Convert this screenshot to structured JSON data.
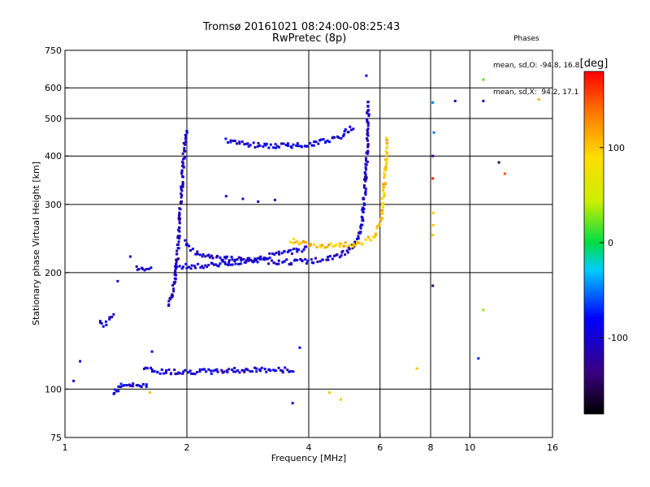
{
  "title": "Tromsø 20161021 08:24:00-08:25:43",
  "subtitle": "RwPretec (8p)",
  "stats": {
    "heading": "Phases",
    "line_o": "mean, sd,O: -94.8, 16.8",
    "line_x": "mean, sd,X:  94.2, 17.1"
  },
  "chart_data": {
    "type": "scatter",
    "title": "Tromsø 20161021 08:24:00-08:25:43",
    "subtitle": "RwPretec (8p)",
    "xlabel": "Frequency [MHz]",
    "ylabel": "Stationary phase Virtual Height [km]",
    "x_scale": "log",
    "y_scale": "log",
    "xlim": [
      1,
      16
    ],
    "ylim": [
      75,
      750
    ],
    "x_ticks": [
      1,
      2,
      4,
      6,
      8,
      10,
      16
    ],
    "y_ticks": [
      75,
      100,
      200,
      300,
      400,
      500,
      600,
      750
    ],
    "grid": true,
    "colorbar": {
      "label": "[deg]",
      "range": [
        -180,
        180
      ],
      "ticks": [
        100,
        0,
        -100
      ]
    },
    "series": [
      {
        "segments": [
          {
            "x": [
              1.32,
              1.36,
              1.42,
              1.48,
              1.53,
              1.58,
              1.6
            ],
            "y": [
              97,
              101,
              103,
              102,
              103,
              102,
              104
            ],
            "phase": -95
          },
          {
            "x": [
              1.57,
              1.62,
              1.72,
              1.82,
              1.95,
              2.1,
              2.35,
              2.6,
              2.9,
              3.2,
              3.5,
              3.7
            ],
            "y": [
              113,
              112,
              111,
              111,
              111,
              111,
              111,
              112,
              112,
              112,
              112,
              112
            ],
            "phase": -100
          },
          {
            "x": [
              1.22,
              1.25,
              1.28,
              1.32
            ],
            "y": [
              150,
              146,
              150,
              157
            ],
            "phase": -100
          },
          {
            "x": [
              1.5,
              1.58,
              1.65
            ],
            "y": [
              206,
              205,
              206
            ],
            "phase": -100
          },
          {
            "x": [
              1.8,
              1.85,
              1.88,
              1.9,
              1.92,
              1.95,
              1.97,
              2.0
            ],
            "y": [
              165,
              180,
              200,
              230,
              280,
              350,
              420,
              470
            ],
            "phase": -110
          },
          {
            "x": [
              1.98,
              2.05,
              2.2,
              2.45,
              2.8,
              3.2,
              3.6,
              4.0,
              4.4,
              4.8,
              5.2,
              5.4,
              5.5,
              5.58,
              5.62
            ],
            "y": [
              240,
              228,
              222,
              218,
              215,
              214,
              213,
              214,
              216,
              222,
              235,
              260,
              320,
              420,
              560
            ],
            "phase": -105
          },
          {
            "x": [
              1.9,
              2.2,
              2.6,
              3.0,
              3.5,
              4.0
            ],
            "y": [
              207,
              208,
              212,
              218,
              225,
              232
            ],
            "phase": -100
          },
          {
            "x": [
              2.5,
              2.8,
              3.1,
              3.5,
              3.9,
              4.3,
              4.8,
              5.2
            ],
            "y": [
              440,
              430,
              425,
              425,
              428,
              435,
              450,
              480
            ],
            "phase": -100
          }
        ]
      },
      {
        "segments": [
          {
            "x": [
              3.6,
              3.9,
              4.2,
              4.6,
              5.0,
              5.4,
              5.8,
              6.0,
              6.1,
              6.2,
              6.25
            ],
            "y": [
              242,
              238,
              236,
              234,
              236,
              240,
              248,
              265,
              300,
              380,
              450
            ],
            "phase": 100
          }
        ]
      }
    ],
    "scatter": [
      {
        "x": 1.05,
        "y": 105,
        "phase": -100
      },
      {
        "x": 1.09,
        "y": 118,
        "phase": -100
      },
      {
        "x": 1.35,
        "y": 190,
        "phase": -100
      },
      {
        "x": 1.45,
        "y": 220,
        "phase": -100
      },
      {
        "x": 1.62,
        "y": 98,
        "phase": 110
      },
      {
        "x": 1.64,
        "y": 125,
        "phase": -100
      },
      {
        "x": 2.5,
        "y": 315,
        "phase": -100
      },
      {
        "x": 2.75,
        "y": 310,
        "phase": -100
      },
      {
        "x": 3.0,
        "y": 305,
        "phase": -100
      },
      {
        "x": 3.3,
        "y": 308,
        "phase": -100
      },
      {
        "x": 3.8,
        "y": 128,
        "phase": -90
      },
      {
        "x": 3.65,
        "y": 92,
        "phase": -100
      },
      {
        "x": 4.5,
        "y": 98,
        "phase": 100
      },
      {
        "x": 4.8,
        "y": 94,
        "phase": 100
      },
      {
        "x": 5.55,
        "y": 645,
        "phase": -100
      },
      {
        "x": 7.4,
        "y": 113,
        "phase": 100
      },
      {
        "x": 8.1,
        "y": 550,
        "phase": -50
      },
      {
        "x": 8.15,
        "y": 460,
        "phase": -50
      },
      {
        "x": 8.1,
        "y": 400,
        "phase": -140
      },
      {
        "x": 8.1,
        "y": 350,
        "phase": 170
      },
      {
        "x": 8.12,
        "y": 285,
        "phase": 100
      },
      {
        "x": 8.12,
        "y": 265,
        "phase": 100
      },
      {
        "x": 8.1,
        "y": 250,
        "phase": 100
      },
      {
        "x": 8.1,
        "y": 185,
        "phase": -150
      },
      {
        "x": 9.2,
        "y": 555,
        "phase": -110
      },
      {
        "x": 10.8,
        "y": 555,
        "phase": -110
      },
      {
        "x": 10.8,
        "y": 630,
        "phase": 20
      },
      {
        "x": 10.8,
        "y": 160,
        "phase": 30
      },
      {
        "x": 10.5,
        "y": 120,
        "phase": -70
      },
      {
        "x": 11.8,
        "y": 385,
        "phase": -150
      },
      {
        "x": 12.2,
        "y": 360,
        "phase": 150
      },
      {
        "x": 14.8,
        "y": 560,
        "phase": 110
      }
    ]
  }
}
